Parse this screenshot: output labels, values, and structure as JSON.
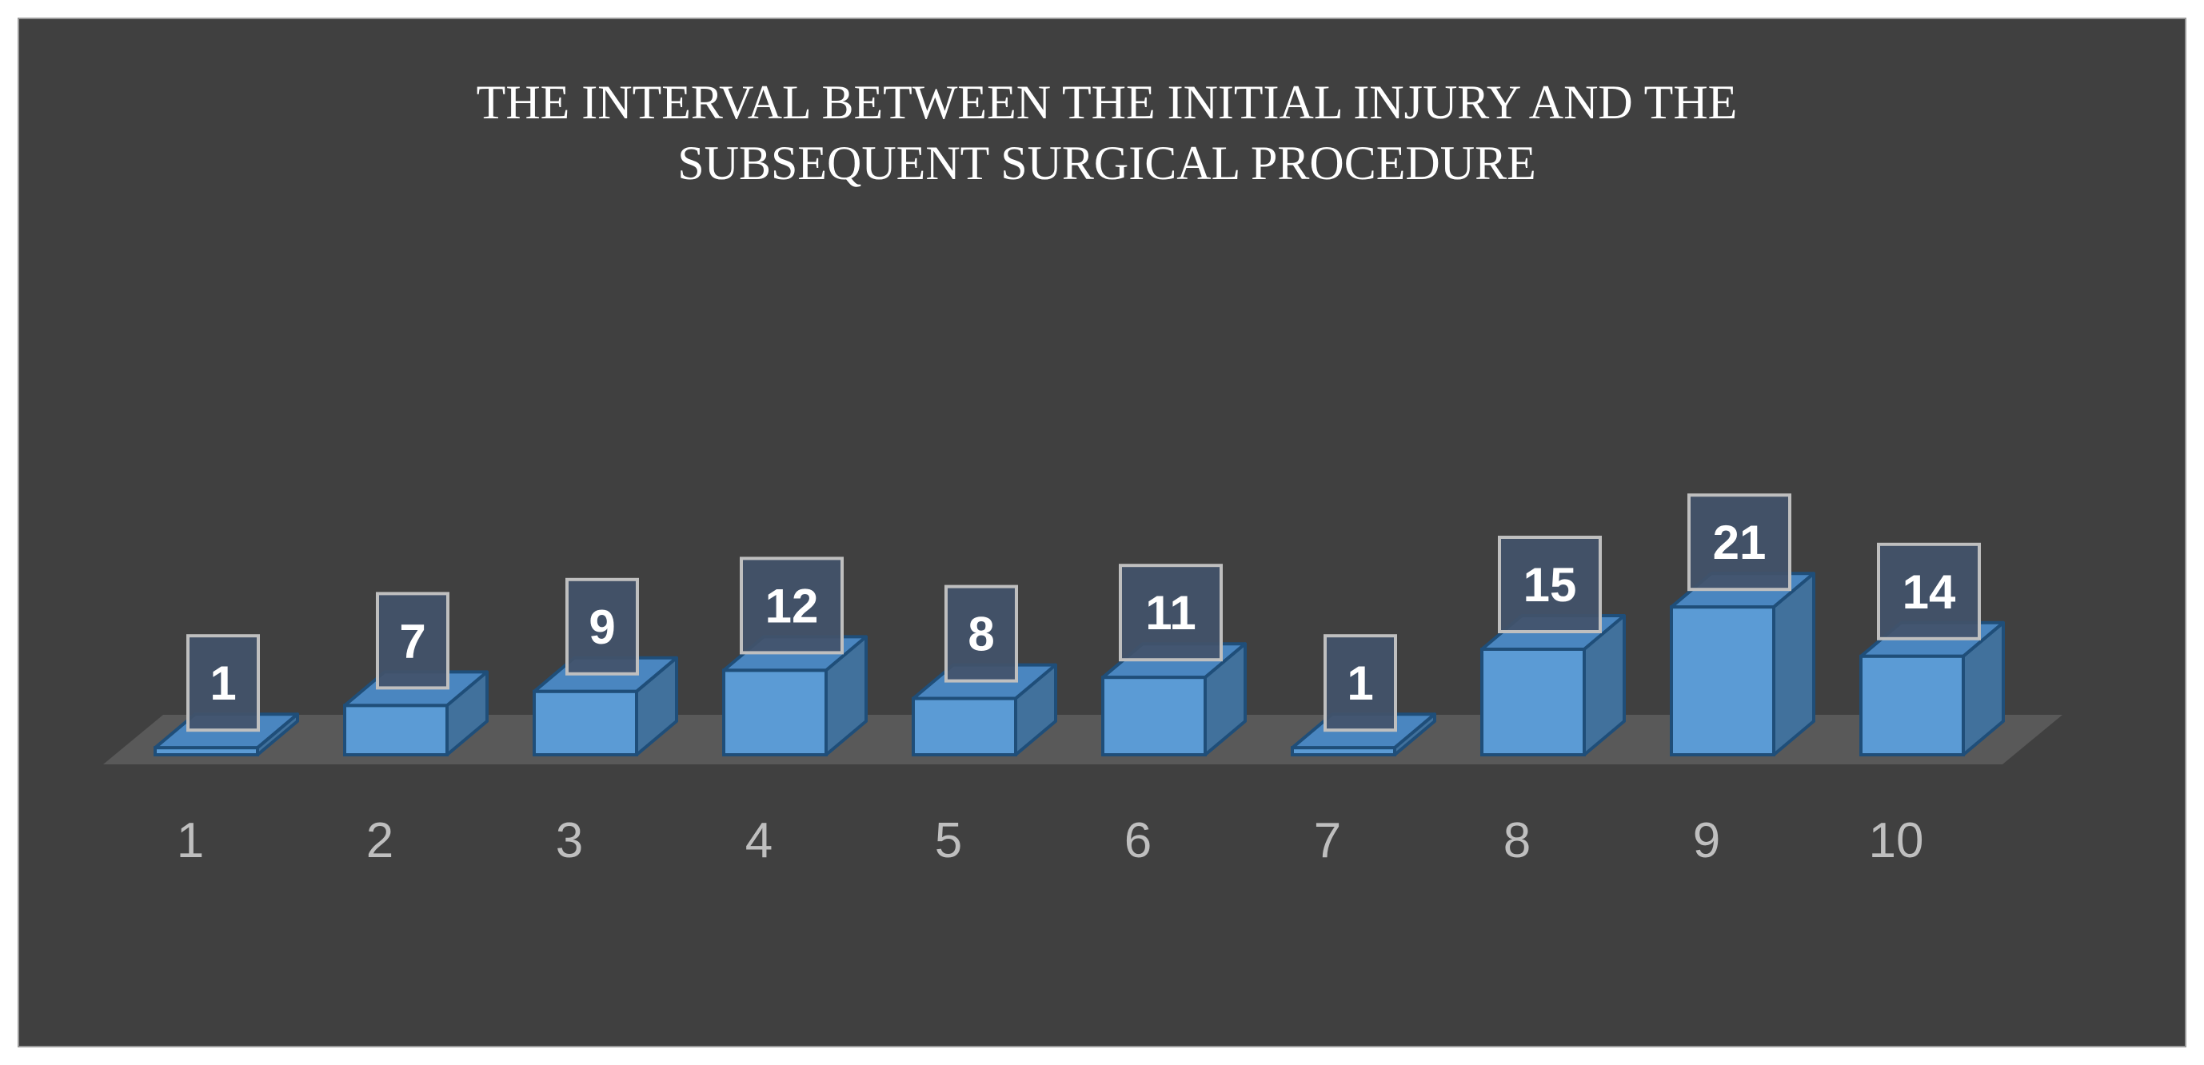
{
  "chart_data": {
    "type": "bar",
    "title": "THE INTERVAL BETWEEN THE INITIAL INJURY AND THE SUBSEQUENT SURGICAL PROCEDURE",
    "title_lines": [
      "THE INTERVAL BETWEEN THE INITIAL INJURY AND THE",
      "SUBSEQUENT SURGICAL PROCEDURE"
    ],
    "categories": [
      "1",
      "2",
      "3",
      "4",
      "5",
      "6",
      "7",
      "8",
      "9",
      "10"
    ],
    "values": [
      1,
      7,
      9,
      12,
      8,
      11,
      1,
      15,
      21,
      14
    ],
    "xlabel": "",
    "ylabel": "",
    "ylim": [
      0,
      25
    ],
    "grid": false,
    "legend": "none",
    "style": "3d-column",
    "colors": {
      "background": "#404040",
      "bar_front": "#5b9bd5",
      "bar_side": "#41719c",
      "bar_top": "#4a86c0",
      "bar_edge": "#1f4e79",
      "floor": "#595959",
      "label_box": "#42526a",
      "label_border": "#bfbfbf"
    }
  }
}
